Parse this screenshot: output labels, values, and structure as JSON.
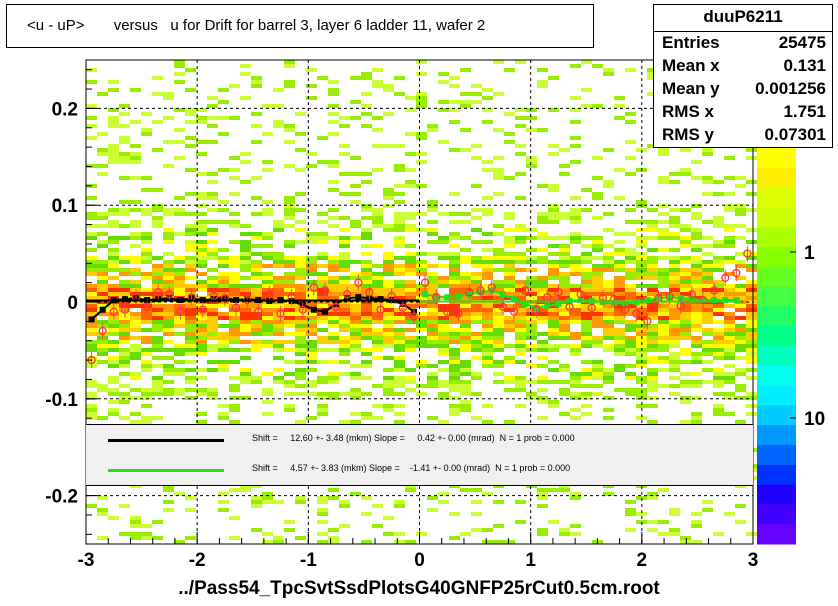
{
  "title": "<u - uP>       versus   u for Drift for barrel 3, layer 6 ladder 11, wafer 2",
  "stats": {
    "name": "duuP6211",
    "rows": [
      {
        "label": "Entries",
        "value": "25475"
      },
      {
        "label": "Mean x",
        "value": "0.131"
      },
      {
        "label": "Mean y",
        "value": "0.001256"
      },
      {
        "label": "RMS x",
        "value": "1.751"
      },
      {
        "label": "RMS y",
        "value": "0.07301"
      }
    ]
  },
  "footer": "../Pass54_TpcSvtSsdPlotsG40GNFP25rCut0.5cm.root",
  "fit_legend": [
    {
      "color": "#000000",
      "text": "Shift =     12.60 +- 3.48 (mkm) Slope =     0.42 +- 0.00 (mrad)  N = 1 prob = 0.000"
    },
    {
      "color": "#22dd22",
      "text": "Shift =     4.57 +- 3.83 (mkm) Slope =    -1.41 +- 0.00 (mrad)  N = 1 prob = 0.000"
    }
  ],
  "chart_data": {
    "type": "heatmap",
    "title": "<u - uP>       versus   u for Drift for barrel 3, layer 6 ladder 11, wafer 2",
    "xlabel": "",
    "ylabel": "",
    "xlim": [
      -3,
      3
    ],
    "ylim": [
      -0.25,
      0.25
    ],
    "x_ticks": [
      -3,
      -2,
      -1,
      0,
      1,
      2,
      3
    ],
    "x_tick_labels": [
      "-3",
      "-2",
      "-1",
      "0",
      "1",
      "2",
      "3"
    ],
    "y_ticks": [
      -0.2,
      -0.1,
      0,
      0.1,
      0.2
    ],
    "y_tick_labels": [
      "-0.2",
      "-0.1",
      "0",
      "0.1",
      "0.2"
    ],
    "grid": true,
    "colorbar": {
      "scale": "log",
      "tick_labels": [
        "1",
        "10"
      ],
      "tick_values": [
        1,
        10
      ]
    },
    "profile_series": [
      {
        "name": "profile-black",
        "color": "#000000",
        "x": [
          -2.95,
          -2.85,
          -2.75,
          -2.65,
          -2.55,
          -2.45,
          -2.35,
          -2.25,
          -2.15,
          -2.05,
          -1.95,
          -1.85,
          -1.75,
          -1.65,
          -1.55,
          -1.45,
          -1.35,
          -1.25,
          -1.15,
          -1.05,
          -0.95,
          -0.85,
          -0.75,
          -0.65,
          -0.55,
          -0.45,
          -0.35,
          -0.25,
          -0.15,
          -0.05
        ],
        "y": [
          -0.018,
          -0.008,
          0.002,
          0.003,
          0.004,
          0.002,
          0.003,
          0.004,
          0.002,
          0.004,
          0.002,
          0.003,
          0.004,
          0.002,
          0.003,
          0.002,
          0.001,
          0.002,
          0.001,
          -0.003,
          -0.008,
          -0.01,
          -0.002,
          0.004,
          0.005,
          0.004,
          0.003,
          0.002,
          -0.002,
          -0.01
        ]
      },
      {
        "name": "profile-green",
        "color": "#22dd22",
        "x": [
          0.05,
          0.15,
          0.25,
          0.35,
          0.45,
          0.55,
          0.65,
          0.75,
          0.85,
          0.95,
          1.05,
          1.15,
          1.25,
          1.35,
          1.45,
          1.55,
          1.65,
          1.75,
          1.85,
          1.95,
          2.05,
          2.15,
          2.25,
          2.35,
          2.45,
          2.55,
          2.65,
          2.75,
          2.85
        ],
        "y": [
          0.008,
          0.006,
          0.005,
          0.006,
          0.008,
          0.01,
          0.012,
          0.008,
          0.003,
          -0.002,
          -0.006,
          -0.004,
          -0.002,
          0.001,
          0.002,
          0.001,
          0,
          -0.001,
          -0.002,
          0,
          0.002,
          0.004,
          0.005,
          0.004,
          0.003,
          0.002,
          0.002,
          0.002,
          0.002
        ]
      },
      {
        "name": "points-red",
        "color": "#ff3333",
        "x": [
          -2.95,
          -2.85,
          -2.75,
          -2.65,
          -2.55,
          -2.45,
          -2.35,
          -2.25,
          -2.15,
          -2.05,
          -1.95,
          -1.85,
          -1.75,
          -1.65,
          -1.55,
          -1.45,
          -1.35,
          -1.25,
          -1.15,
          -1.05,
          -0.95,
          -0.85,
          -0.75,
          -0.65,
          -0.55,
          -0.45,
          -0.35,
          -0.25,
          -0.15,
          -0.05,
          0.05,
          0.15,
          0.25,
          0.35,
          0.45,
          0.55,
          0.65,
          0.75,
          0.85,
          0.95,
          1.05,
          1.15,
          1.25,
          1.35,
          1.45,
          1.55,
          1.65,
          1.75,
          1.85,
          1.95,
          2.05,
          2.15,
          2.25,
          2.35,
          2.45,
          2.55,
          2.65,
          2.75,
          2.85,
          2.95
        ],
        "y": [
          -0.06,
          -0.03,
          -0.01,
          -0.008,
          0.005,
          -0.005,
          0.01,
          0.008,
          -0.01,
          0.005,
          -0.008,
          0.006,
          0.004,
          -0.006,
          0.002,
          -0.01,
          0.008,
          -0.012,
          0.005,
          -0.008,
          0.015,
          0.012,
          -0.005,
          0.008,
          0.02,
          0.01,
          -0.008,
          0.006,
          -0.006,
          -0.015,
          0.02,
          0.005,
          -0.01,
          -0.012,
          0.01,
          0.012,
          0.015,
          -0.005,
          -0.01,
          0.012,
          -0.008,
          0.005,
          0.01,
          -0.005,
          0.008,
          -0.006,
          0.004,
          0.003,
          -0.008,
          -0.012,
          -0.02,
          0.004,
          0.006,
          -0.004,
          0.008,
          0.002,
          0.012,
          0.025,
          0.03,
          0.05
        ]
      }
    ]
  }
}
